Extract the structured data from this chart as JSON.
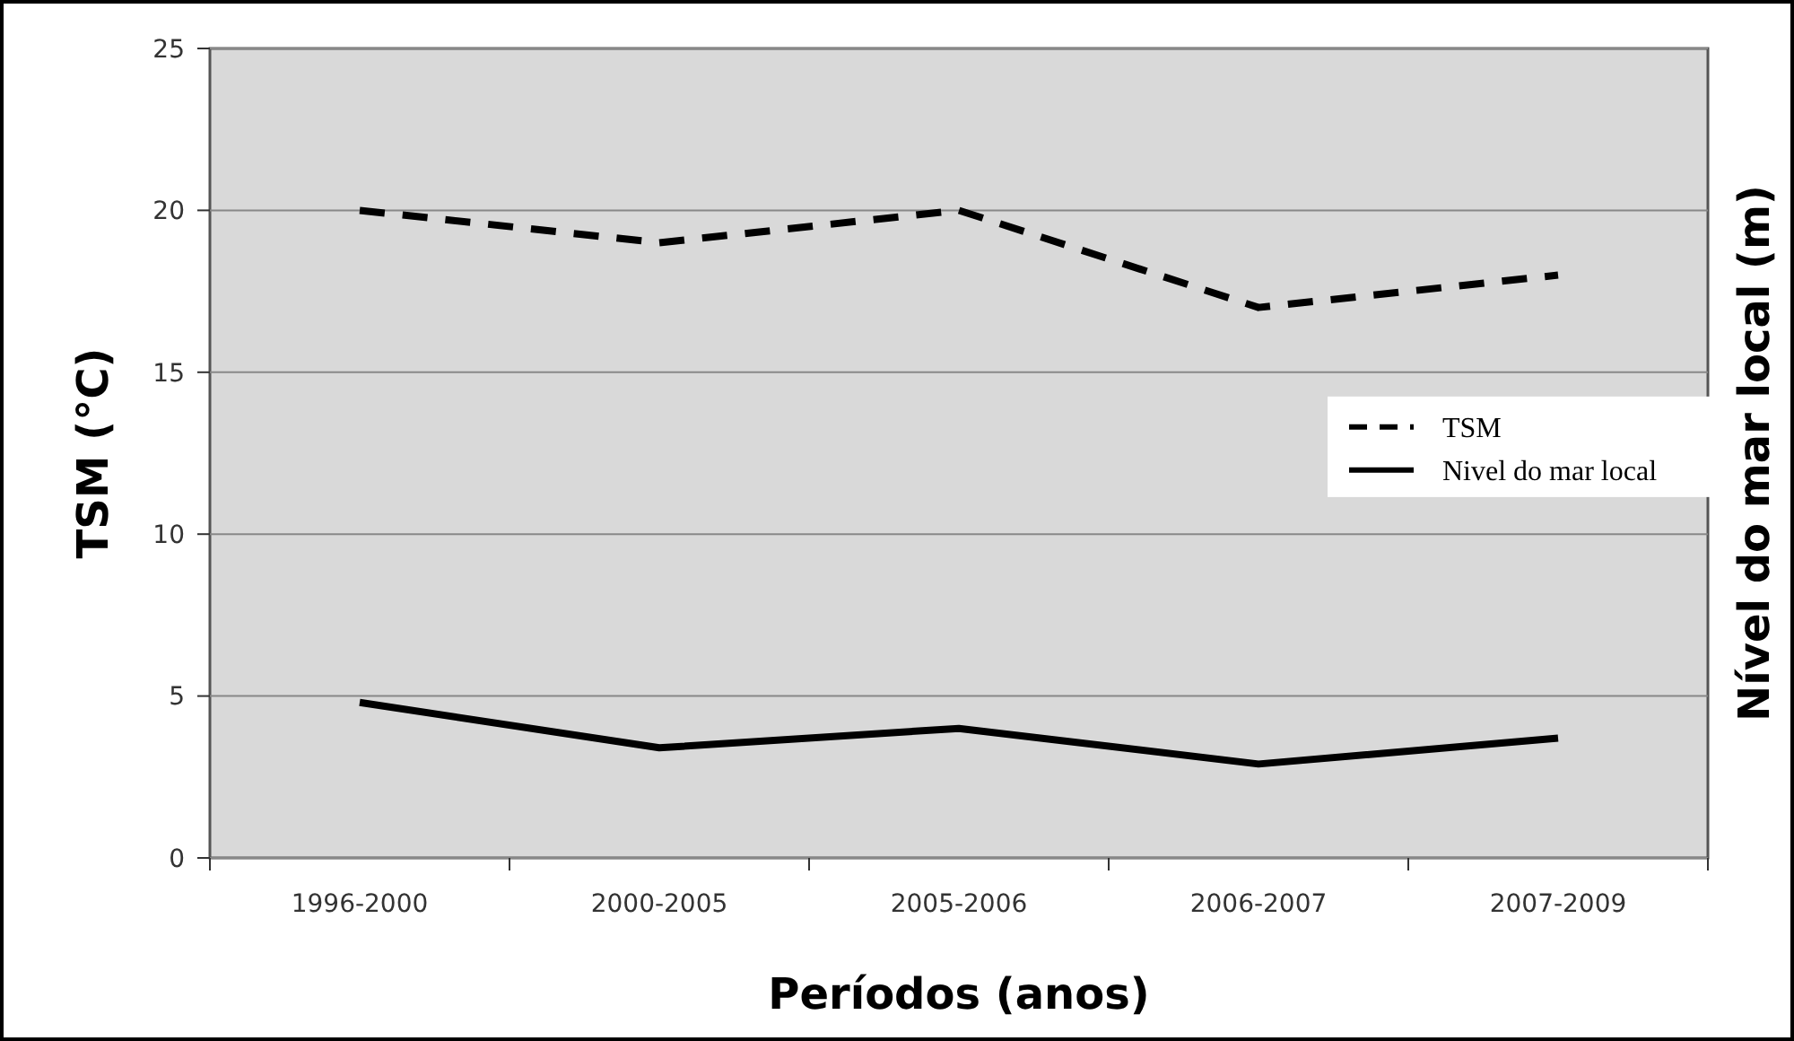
{
  "chart_data": {
    "type": "line",
    "xlabel": "Períodos (anos)",
    "ylabel": "TSM (°C)",
    "y2label": "Nível do mar local (m)",
    "categories": [
      "1996-2000",
      "2000-2005",
      "2005-2006",
      "2006-2007",
      "2007-2009"
    ],
    "ylim": [
      0,
      25
    ],
    "yticks": [
      0,
      5,
      10,
      15,
      20,
      25
    ],
    "grid": "y",
    "legend": "right",
    "series": [
      {
        "name": "TSM",
        "color": "#000000",
        "line_style": "dashed",
        "values": [
          20,
          19,
          20,
          17,
          18
        ]
      },
      {
        "name": "Nivel do mar local",
        "color": "#000000",
        "line_style": "solid",
        "values": [
          4.8,
          3.4,
          4.0,
          2.9,
          3.7
        ]
      }
    ]
  }
}
